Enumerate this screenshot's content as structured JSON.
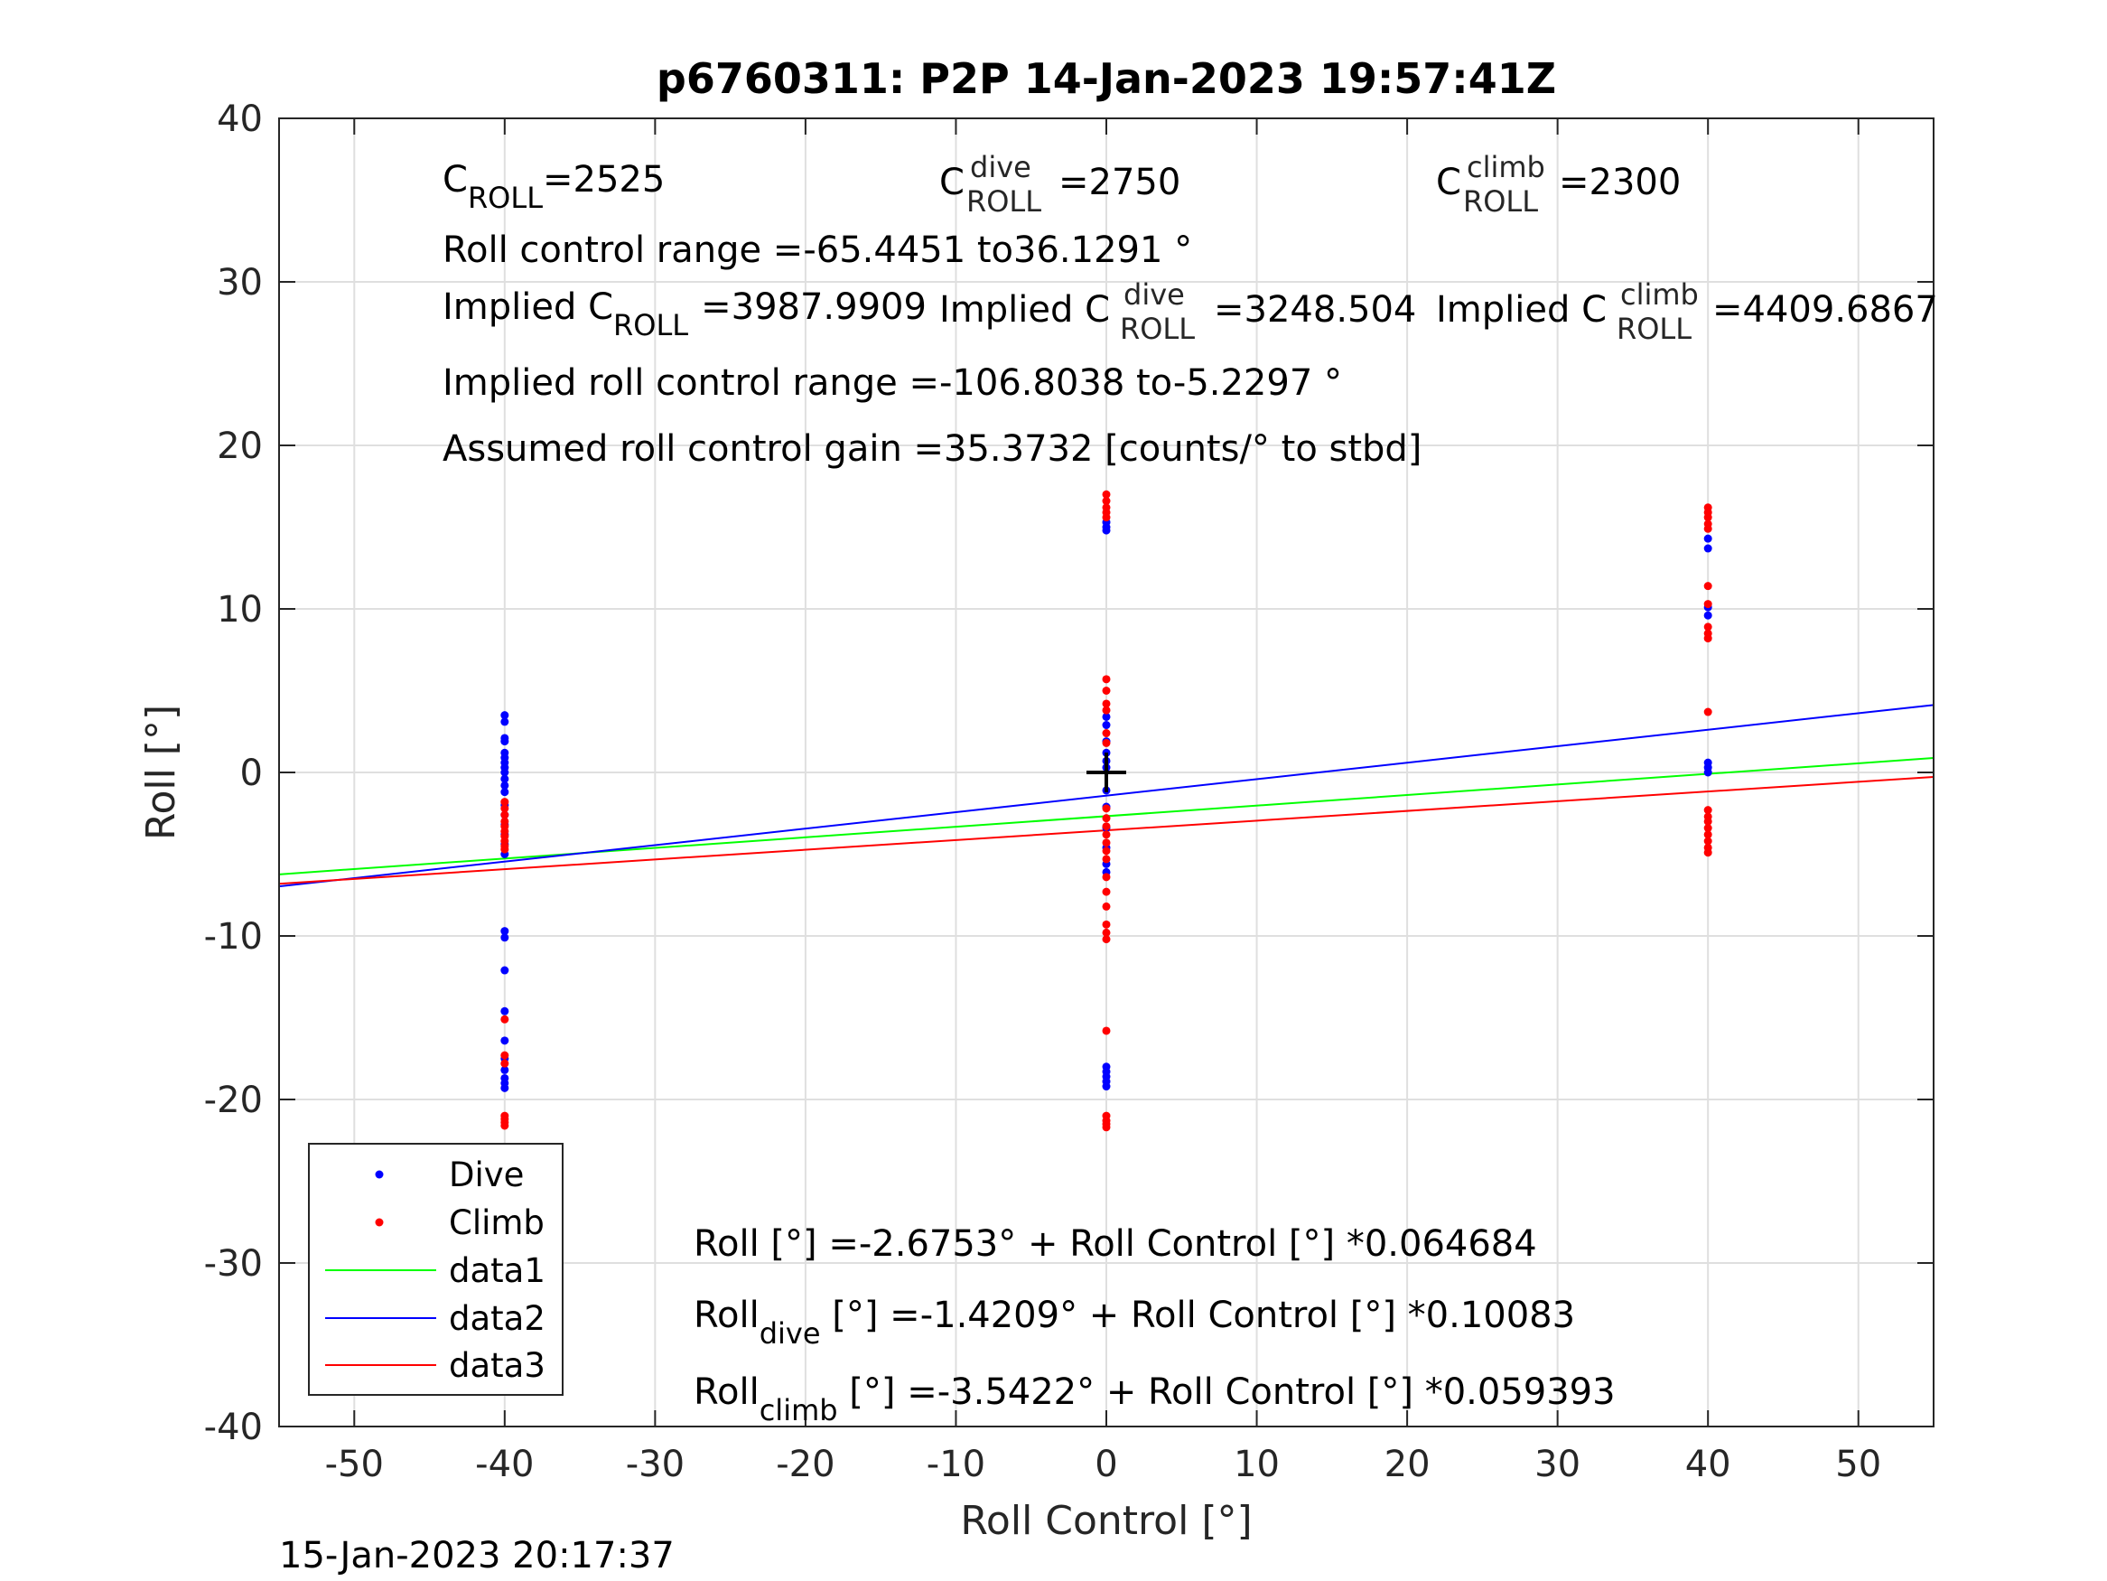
{
  "chart_data": {
    "type": "scatter",
    "title": "p6760311: P2P 14-Jan-2023 19:57:41Z",
    "xlabel": "Roll Control [°]",
    "ylabel": "Roll [°]",
    "xlim": [
      -55,
      55
    ],
    "ylim": [
      -40,
      40
    ],
    "xticks": [
      -50,
      -40,
      -30,
      -20,
      -10,
      0,
      10,
      20,
      30,
      40,
      50
    ],
    "yticks": [
      -40,
      -30,
      -20,
      -10,
      0,
      10,
      20,
      30,
      40
    ],
    "xtick_labels": [
      "-50",
      "-40",
      "-30",
      "-20",
      "-10",
      "0",
      "10",
      "20",
      "30",
      "40",
      "50"
    ],
    "ytick_labels": [
      "-40",
      "-30",
      "-20",
      "-10",
      "0",
      "10",
      "20",
      "30",
      "40"
    ],
    "grid": true,
    "legend_position": "bottom-left",
    "legend": [
      "Dive",
      "Climb",
      "data1",
      "data2",
      "data3"
    ],
    "series": [
      {
        "name": "Dive",
        "kind": "points",
        "color": "#0000ff",
        "points": [
          [
            -40,
            3.5
          ],
          [
            -40,
            3.1
          ],
          [
            -40,
            2.1
          ],
          [
            -40,
            1.9
          ],
          [
            -40,
            1.2
          ],
          [
            -40,
            0.9
          ],
          [
            -40,
            0.6
          ],
          [
            -40,
            0.3
          ],
          [
            -40,
            0.0
          ],
          [
            -40,
            -0.4
          ],
          [
            -40,
            -0.8
          ],
          [
            -40,
            -1.2
          ],
          [
            -40,
            -2.0
          ],
          [
            -40,
            -2.6
          ],
          [
            -40,
            -3.2
          ],
          [
            -40,
            -3.8
          ],
          [
            -40,
            -4.4
          ],
          [
            -40,
            -5.0
          ],
          [
            -40,
            -9.7
          ],
          [
            -40,
            -10.1
          ],
          [
            -40,
            -12.1
          ],
          [
            -40,
            -14.6
          ],
          [
            -40,
            -16.4
          ],
          [
            -40,
            -17.5
          ],
          [
            -40,
            -18.2
          ],
          [
            -40,
            -18.7
          ],
          [
            -40,
            -19.0
          ],
          [
            -40,
            -19.3
          ],
          [
            0,
            15.3
          ],
          [
            0,
            15.0
          ],
          [
            0,
            14.8
          ],
          [
            0,
            3.4
          ],
          [
            0,
            2.9
          ],
          [
            0,
            1.9
          ],
          [
            0,
            1.2
          ],
          [
            0,
            0.7
          ],
          [
            0,
            0.3
          ],
          [
            0,
            -1.1
          ],
          [
            0,
            -2.1
          ],
          [
            0,
            -3.4
          ],
          [
            0,
            -4.6
          ],
          [
            0,
            -5.6
          ],
          [
            0,
            -6.1
          ],
          [
            0,
            -18.0
          ],
          [
            0,
            -18.3
          ],
          [
            0,
            -18.6
          ],
          [
            0,
            -18.9
          ],
          [
            0,
            -19.2
          ],
          [
            40,
            14.3
          ],
          [
            40,
            13.7
          ],
          [
            40,
            10.1
          ],
          [
            40,
            9.6
          ],
          [
            40,
            0.6
          ],
          [
            40,
            0.3
          ],
          [
            40,
            0.0
          ]
        ]
      },
      {
        "name": "Climb",
        "kind": "points",
        "color": "#ff0000",
        "points": [
          [
            -40,
            -1.8
          ],
          [
            -40,
            -2.2
          ],
          [
            -40,
            -2.6
          ],
          [
            -40,
            -3.0
          ],
          [
            -40,
            -3.3
          ],
          [
            -40,
            -3.6
          ],
          [
            -40,
            -3.9
          ],
          [
            -40,
            -4.2
          ],
          [
            -40,
            -4.5
          ],
          [
            -40,
            -4.7
          ],
          [
            -40,
            -15.1
          ],
          [
            -40,
            -17.3
          ],
          [
            -40,
            -17.8
          ],
          [
            -40,
            -21.0
          ],
          [
            -40,
            -21.2
          ],
          [
            -40,
            -21.4
          ],
          [
            -40,
            -21.6
          ],
          [
            0,
            17.0
          ],
          [
            0,
            16.6
          ],
          [
            0,
            16.2
          ],
          [
            0,
            15.9
          ],
          [
            0,
            15.6
          ],
          [
            0,
            5.7
          ],
          [
            0,
            5.0
          ],
          [
            0,
            4.2
          ],
          [
            0,
            3.8
          ],
          [
            0,
            2.4
          ],
          [
            0,
            1.8
          ],
          [
            0,
            -2.2
          ],
          [
            0,
            -2.8
          ],
          [
            0,
            -3.3
          ],
          [
            0,
            -3.8
          ],
          [
            0,
            -4.3
          ],
          [
            0,
            -4.8
          ],
          [
            0,
            -5.3
          ],
          [
            0,
            -6.4
          ],
          [
            0,
            -7.3
          ],
          [
            0,
            -8.2
          ],
          [
            0,
            -9.3
          ],
          [
            0,
            -9.8
          ],
          [
            0,
            -10.2
          ],
          [
            0,
            -15.8
          ],
          [
            0,
            -21.0
          ],
          [
            0,
            -21.3
          ],
          [
            0,
            -21.5
          ],
          [
            0,
            -21.7
          ],
          [
            40,
            16.2
          ],
          [
            40,
            15.9
          ],
          [
            40,
            15.6
          ],
          [
            40,
            15.2
          ],
          [
            40,
            14.9
          ],
          [
            40,
            11.4
          ],
          [
            40,
            10.3
          ],
          [
            40,
            8.9
          ],
          [
            40,
            8.5
          ],
          [
            40,
            8.2
          ],
          [
            40,
            3.7
          ],
          [
            40,
            -2.3
          ],
          [
            40,
            -2.7
          ],
          [
            40,
            -3.0
          ],
          [
            40,
            -3.4
          ],
          [
            40,
            -3.8
          ],
          [
            40,
            -4.2
          ],
          [
            40,
            -4.6
          ],
          [
            40,
            -4.9
          ]
        ]
      },
      {
        "name": "data1",
        "kind": "line",
        "color": "#00ff00",
        "intercept": -2.6753,
        "slope": 0.064684
      },
      {
        "name": "data2",
        "kind": "line",
        "color": "#0000ff",
        "intercept": -1.4209,
        "slope": 0.10083
      },
      {
        "name": "data3",
        "kind": "line",
        "color": "#ff0000",
        "intercept": -3.5422,
        "slope": 0.059393
      }
    ],
    "center_marker": {
      "x": 0,
      "y": 0,
      "symbol": "+",
      "color": "#000000"
    },
    "annotations": {
      "c_roll": {
        "base": "C",
        "sub": "ROLL",
        "value": "=2525"
      },
      "c_roll_dive": {
        "base": "C",
        "sup": "dive",
        "sub": "ROLL",
        "value": "=2750"
      },
      "c_roll_climb": {
        "base": "C",
        "sup": "climb",
        "sub": "ROLL",
        "value": "=2300"
      },
      "roll_control_range": "Roll control range =-65.4451 to36.1291 °",
      "implied_c_roll": {
        "prefix": "Implied C",
        "sub": "ROLL",
        "value": "=3987.9909"
      },
      "implied_c_roll_dive": {
        "prefix": "Implied C",
        "sup": "dive",
        "sub": "ROLL",
        "value": "=3248.504"
      },
      "implied_c_roll_climb": {
        "prefix": "Implied C",
        "sup": "climb",
        "sub": "ROLL",
        "value": "=4409.6867"
      },
      "implied_range": "Implied roll control range =-106.8038 to-5.2297 °",
      "gain": "Assumed roll control gain =35.3732 [counts/° to stbd]",
      "fit_all": "Roll [°] =-2.6753° + Roll Control [°] *0.064684",
      "fit_dive": {
        "prefix": "Roll",
        "sub": "dive",
        "rest": " [°] =-1.4209° + Roll Control [°] *0.10083"
      },
      "fit_climb": {
        "prefix": "Roll",
        "sub": "climb",
        "rest": " [°] =-3.5422° + Roll Control [°] *0.059393"
      }
    }
  },
  "footer_timestamp": "15-Jan-2023 20:17:37"
}
